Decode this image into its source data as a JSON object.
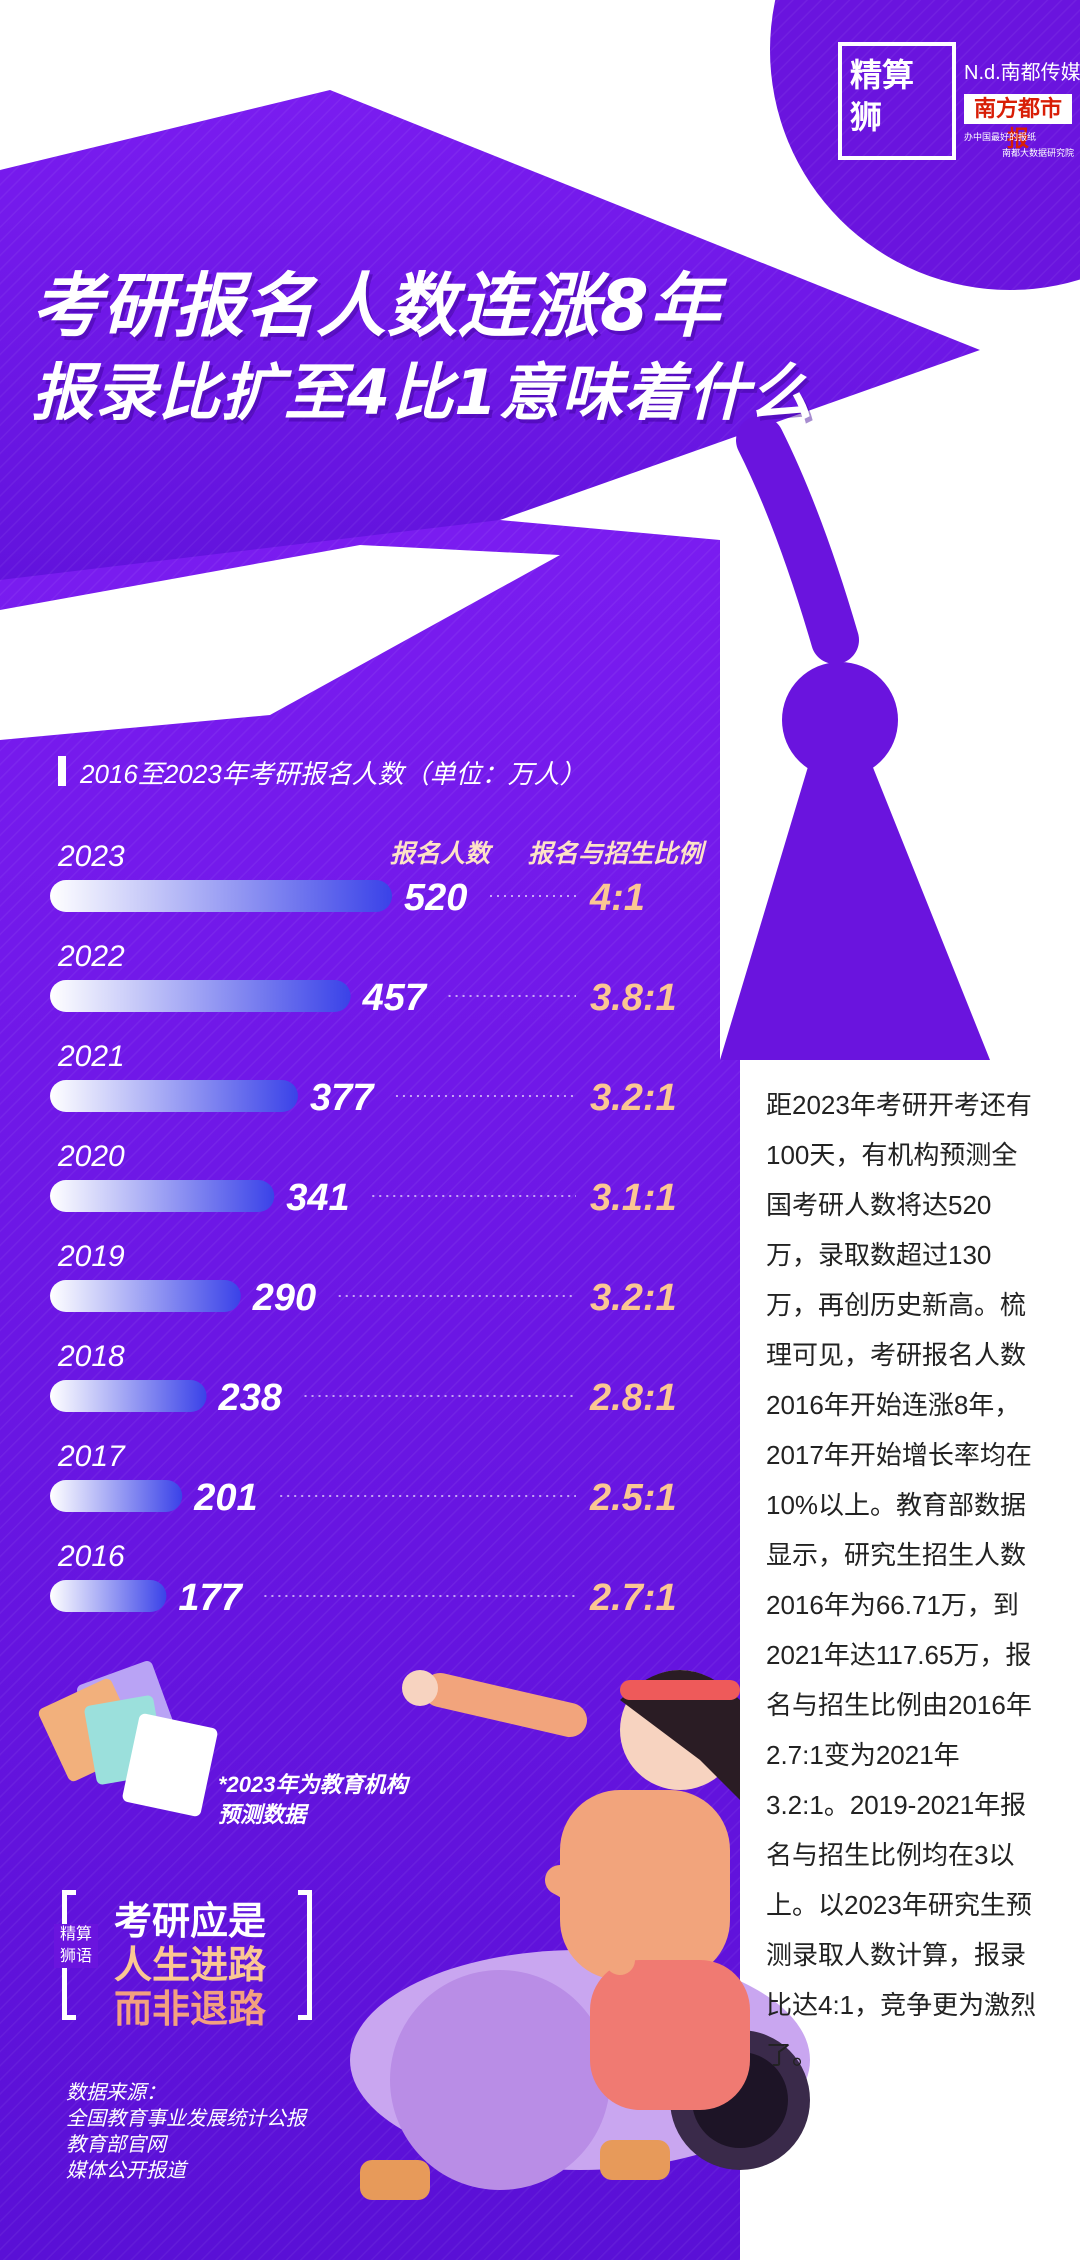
{
  "header": {
    "title_line1": "考研报名人数连涨8年",
    "title_line2": "报录比扩至4比1意味着什么"
  },
  "logo": {
    "badge_text": "精算狮",
    "brand": "N.d.南都传媒",
    "paper": "南方都市报",
    "slogan": "办中国最好的报纸",
    "institute": "南都大数据研究院"
  },
  "chart_data": {
    "type": "bar",
    "title": "2016至2023年考研报名人数（单位：万人）",
    "column_headers": [
      "报名人数",
      "报名与招生比例"
    ],
    "categories": [
      "2023",
      "2022",
      "2021",
      "2020",
      "2019",
      "2018",
      "2017",
      "2016"
    ],
    "series": [
      {
        "name": "报名人数",
        "values": [
          520,
          457,
          377,
          341,
          290,
          238,
          201,
          177
        ]
      }
    ],
    "ratios": [
      "4:1",
      "3.8:1",
      "3.2:1",
      "3.1:1",
      "3.2:1",
      "2.8:1",
      "2.5:1",
      "2.7:1"
    ],
    "note": "*2023年为教育机构\n预测数据",
    "colors": {
      "bar_start": "#ffffff",
      "bar_end": "#3a42e8",
      "ratio": "#fbc793",
      "background": "#6a14de"
    }
  },
  "quote": {
    "tag": "精算狮语",
    "line1": "考研应是",
    "line2": "人生进路",
    "line3": "而非退路"
  },
  "sources": {
    "label": "数据来源：",
    "items": [
      "全国教育事业发展统计公报",
      "教育部官网",
      "媒体公开报道"
    ]
  },
  "body_text": "距2023年考研开考还有100天，有机构预测全国考研人数将达520万，录取数超过130万，再创历史新高。梳理可见，考研报名人数2016年开始连涨8年，2017年开始增长率均在10%以上。教育部数据显示，研究生招生人数2016年为66.71万，到2021年达117.65万，报名与招生比例由2016年2.7:1变为2021年3.2:1。2019-2021年报名与招生比例均在3以上。以2023年研究生预测录取人数计算，报录比达4:1，竞争更为激烈了。"
}
